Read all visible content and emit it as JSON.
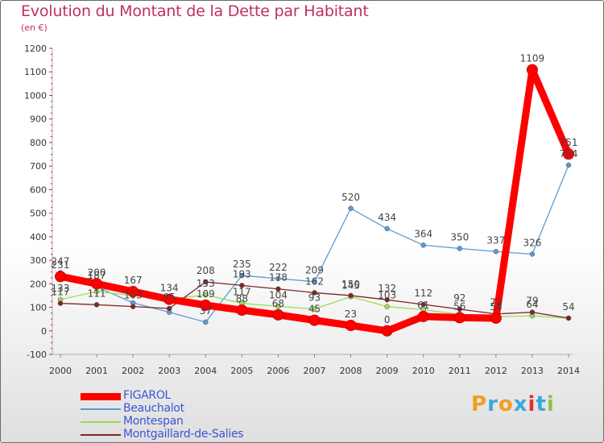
{
  "title": "Evolution du Montant de la Dette par Habitant",
  "subtitle": "(en €)",
  "logo": {
    "text": "Proxiti",
    "letter_colors": [
      "#f0a020",
      "#3aa7e0",
      "#f0a020",
      "#3aa7e0",
      "#e03030",
      "#3aa7e0",
      "#8bc34a"
    ]
  },
  "chart_data": {
    "type": "line",
    "title": "Evolution du Montant de la Dette par Habitant",
    "subtitle": "(en €)",
    "x": [
      "2000",
      "2001",
      "2002",
      "2003",
      "2004",
      "2005",
      "2006",
      "2007",
      "2008",
      "2009",
      "2010",
      "2011",
      "2012",
      "2013",
      "2014"
    ],
    "ylim": [
      -100,
      1200
    ],
    "yticks": [
      -100,
      0,
      100,
      200,
      300,
      400,
      500,
      600,
      700,
      800,
      900,
      1000,
      1100,
      1200
    ],
    "grid": false,
    "legend_position": "bottom-left",
    "series": [
      {
        "name": "FIGAROL",
        "color": "#ff0000",
        "values": [
          231,
          200,
          167,
          134,
          109,
          88,
          68,
          45,
          23,
          0,
          61,
          56,
          54,
          1109,
          751
        ],
        "labels": [
          "231",
          "200",
          "167",
          "134",
          "109",
          "88",
          "68",
          "45",
          "23",
          "0",
          "61",
          "56",
          "54",
          "1109",
          "751"
        ]
      },
      {
        "name": "Beauchalot",
        "color": "#5b9bd5",
        "values": [
          247,
          187,
          119,
          79,
          37,
          235,
          222,
          209,
          520,
          434,
          364,
          350,
          337,
          326,
          704
        ],
        "labels": [
          "247",
          "187",
          "",
          "",
          "37",
          "235",
          "222",
          "209",
          "520",
          "434",
          "364",
          "350",
          "337",
          "326",
          "704"
        ]
      },
      {
        "name": "Montespan",
        "color": "#99dd55",
        "values": [
          133,
          167,
          150,
          134,
          153,
          117,
          104,
          93,
          145,
          103,
          90,
          70,
          60,
          64,
          54
        ],
        "labels": [
          "133",
          "",
          "",
          "",
          "153",
          "117",
          "104",
          "93",
          "145",
          "103",
          "",
          "",
          "",
          "64",
          ""
        ]
      },
      {
        "name": "Montgaillard-de-Salies",
        "color": "#7f2626",
        "values": [
          117,
          111,
          103,
          95,
          208,
          193,
          178,
          162,
          150,
          132,
          112,
          92,
          72,
          79,
          54
        ],
        "labels": [
          "117",
          "111",
          "103",
          "95",
          "208",
          "193",
          "178",
          "162",
          "150",
          "132",
          "112",
          "92",
          "72",
          "79",
          "54"
        ]
      }
    ]
  }
}
